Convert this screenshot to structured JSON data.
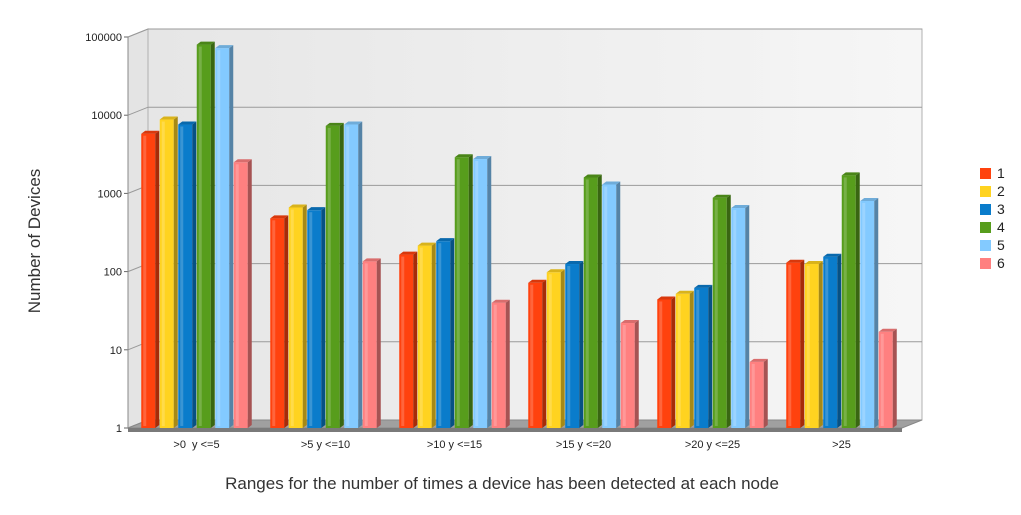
{
  "chart_data": {
    "type": "bar",
    "title": "",
    "xlabel": "Ranges for the number of times a device has been detected at each node",
    "ylabel": "Number of Devices",
    "y_scale": "log",
    "ylim": [
      1,
      100000
    ],
    "y_ticks": [
      {
        "value": 1,
        "label": "1"
      },
      {
        "value": 10,
        "label": "10"
      },
      {
        "value": 100,
        "label": "100"
      },
      {
        "value": 1000,
        "label": "1000"
      },
      {
        "value": 10000,
        "label": "10000"
      },
      {
        "value": 100000,
        "label": "100000"
      }
    ],
    "grid": true,
    "legend_position": "right",
    "categories": [
      ">0  y <=5",
      ">5 y <=10",
      ">10 y <=15",
      ">15 y <=20",
      ">20 y <=25",
      ">25"
    ],
    "series": [
      {
        "name": "1",
        "color": "#ff420e",
        "values": [
          5800,
          480,
          165,
          72,
          44,
          130
        ]
      },
      {
        "name": "2",
        "color": "#ffd320",
        "values": [
          8800,
          660,
          215,
          98,
          52,
          125
        ]
      },
      {
        "name": "3",
        "color": "#0a7ccb",
        "values": [
          7600,
          610,
          245,
          125,
          62,
          155
        ]
      },
      {
        "name": "4",
        "color": "#579d1c",
        "values": [
          80000,
          7300,
          2900,
          1600,
          880,
          1700
        ]
      },
      {
        "name": "5",
        "color": "#83caff",
        "values": [
          72000,
          7600,
          2750,
          1300,
          650,
          800
        ]
      },
      {
        "name": "6",
        "color": "#ff8080",
        "values": [
          2500,
          135,
          40,
          22,
          7,
          17
        ]
      }
    ]
  }
}
